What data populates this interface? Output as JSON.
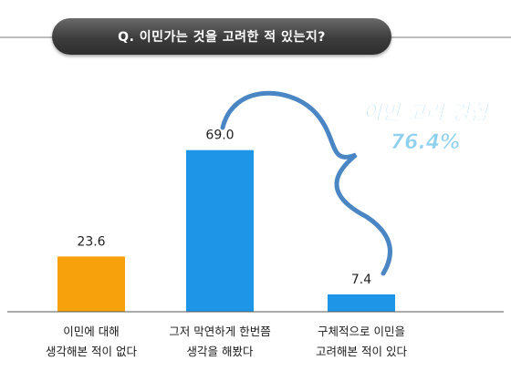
{
  "title": "Q. 이민가는 것을 고려한 적 있는지?",
  "annotation": {
    "label": "이민 고려 경험",
    "value": "76.4%"
  },
  "colors": {
    "highlight_bar": "#f7a20c",
    "bar": "#1f95e8",
    "brace": "#4a86c3",
    "annotation_text": "#8fd0ee"
  },
  "chart_data": {
    "type": "bar",
    "categories": [
      [
        "이민에 대해",
        "생각해본 적이 없다"
      ],
      [
        "그저 막연하게 한번쯤",
        "생각을 해봤다"
      ],
      [
        "구체적으로 이민을",
        "고려해본 적이 있다"
      ]
    ],
    "values": [
      23.6,
      69.0,
      7.4
    ],
    "value_labels": [
      "23.6",
      "69.0",
      "7.4"
    ],
    "ylim": [
      0,
      100
    ],
    "grid": false
  }
}
